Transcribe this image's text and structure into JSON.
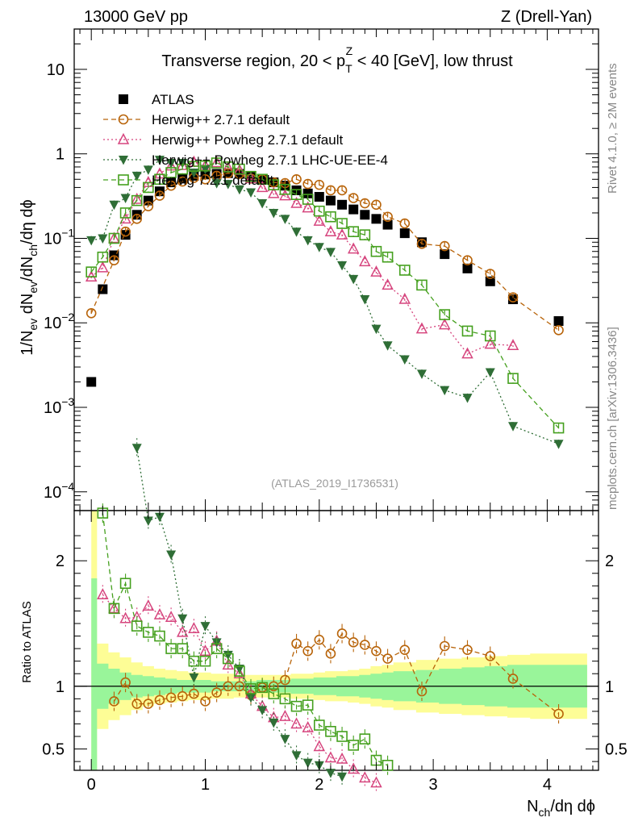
{
  "header": {
    "left": "13000 GeV pp",
    "right": "Z (Drell-Yan)"
  },
  "side": {
    "rivet": "Rivet 4.1.0, ≥ 2M events",
    "mcplots": "mcplots.cern.ch [arXiv:1306.3436]"
  },
  "chart_data": {
    "type": "scatter",
    "title": "Transverse region, 20 < p_T^Z < 40 [GeV], low thrust",
    "analysis_tag": "(ATLAS_2019_I1736531)",
    "xlabel": "N_ch/dη dϕ",
    "ylabel": "1/N_ev dN_ev/dN_ch/dη dϕ",
    "ratio_ylabel": "Ratio to ATLAS",
    "xlim": [
      -0.15,
      4.45
    ],
    "ylim": [
      6e-05,
      30
    ],
    "yscale": "log",
    "ratio_ylim": [
      0.33,
      2.4
    ],
    "x_ticks": [
      0,
      1,
      2,
      3,
      4
    ],
    "y_ticks": [
      {
        "v": 0.0001,
        "base": "10",
        "exp": "−4"
      },
      {
        "v": 0.001,
        "base": "10",
        "exp": "−3"
      },
      {
        "v": 0.01,
        "base": "10",
        "exp": "−2"
      },
      {
        "v": 0.1,
        "base": "10",
        "exp": "−1"
      },
      {
        "v": 1,
        "base": "1",
        "exp": ""
      },
      {
        "v": 10,
        "base": "10",
        "exp": ""
      }
    ],
    "ratio_ticks": [
      {
        "v": 0.5,
        "label": "0.5"
      },
      {
        "v": 1,
        "label": "1"
      },
      {
        "v": 2,
        "label": "2"
      }
    ],
    "x": [
      0.0,
      0.1,
      0.2,
      0.3,
      0.4,
      0.5,
      0.6,
      0.7,
      0.8,
      0.9,
      1.0,
      1.1,
      1.2,
      1.3,
      1.4,
      1.5,
      1.6,
      1.7,
      1.8,
      1.9,
      2.0,
      2.1,
      2.2,
      2.3,
      2.4,
      2.5,
      2.6,
      2.75,
      2.9,
      3.1,
      3.3,
      3.5,
      3.7,
      4.1
    ],
    "series": [
      {
        "name": "ATLAS",
        "marker": "square-filled",
        "color": "#000000",
        "values": [
          0.002,
          0.025,
          0.063,
          0.11,
          0.19,
          0.28,
          0.36,
          0.46,
          0.51,
          0.55,
          0.57,
          0.58,
          0.59,
          0.58,
          0.55,
          0.5,
          0.46,
          0.42,
          0.37,
          0.34,
          0.31,
          0.28,
          0.25,
          0.22,
          0.19,
          0.17,
          0.145,
          0.115,
          0.09,
          0.065,
          0.044,
          0.031,
          0.019,
          0.0105
        ]
      },
      {
        "name": "Herwig++ 2.7.1 default",
        "marker": "circle-open",
        "color": "#b8640a",
        "line": "dashed",
        "values": [
          0.013,
          null,
          0.055,
          0.12,
          0.17,
          0.24,
          0.32,
          0.42,
          0.47,
          0.52,
          0.5,
          0.55,
          0.59,
          0.58,
          0.51,
          0.5,
          0.46,
          0.45,
          0.5,
          0.44,
          0.43,
          0.37,
          0.37,
          0.3,
          0.26,
          0.25,
          0.18,
          0.15,
          0.086,
          0.081,
          0.055,
          0.038,
          0.02,
          0.0082
        ],
        "ratio": [
          null,
          null,
          0.88,
          1.03,
          0.86,
          0.86,
          0.89,
          0.91,
          0.92,
          0.94,
          0.88,
          0.95,
          1.0,
          1.0,
          0.93,
          0.99,
          1.0,
          1.05,
          1.34,
          1.28,
          1.37,
          1.26,
          1.42,
          1.35,
          1.33,
          1.28,
          1.22,
          1.29,
          0.96,
          1.32,
          1.29,
          1.24,
          1.06,
          0.78
        ]
      },
      {
        "name": "Herwig++ Powheg 2.7.1 default",
        "marker": "triangle-open",
        "color": "#d6457e",
        "line": "dotted",
        "values": [
          0.035,
          0.045,
          0.1,
          0.17,
          0.29,
          0.46,
          0.58,
          0.72,
          0.73,
          0.8,
          0.72,
          0.79,
          0.69,
          0.64,
          0.51,
          0.4,
          0.34,
          0.32,
          0.26,
          0.23,
          0.16,
          0.12,
          0.11,
          0.075,
          0.053,
          0.04,
          0.028,
          0.019,
          0.0085,
          0.0095,
          0.0043,
          0.0056,
          0.0054,
          null
        ],
        "ratio": [
          null,
          1.73,
          1.62,
          1.54,
          1.55,
          1.64,
          1.57,
          1.55,
          1.43,
          1.46,
          1.28,
          1.36,
          1.17,
          1.1,
          0.94,
          0.84,
          0.75,
          0.76,
          0.7,
          0.67,
          0.52,
          0.43,
          0.42,
          0.34,
          0.27,
          0.23,
          null,
          null,
          null,
          null,
          null,
          null,
          null,
          null
        ]
      },
      {
        "name": "Herwig++ Powheg 2.7.1 LHC-UE-EE-4",
        "marker": "triangle-down-filled",
        "color": "#2f6e36",
        "line": "dotted",
        "values": [
          0.095,
          0.1,
          0.25,
          0.3,
          0.55,
          0.65,
          0.85,
          0.78,
          0.78,
          0.6,
          0.66,
          0.45,
          0.44,
          0.38,
          0.35,
          0.26,
          0.2,
          0.17,
          0.12,
          0.095,
          0.079,
          0.069,
          0.048,
          0.033,
          0.019,
          0.0085,
          0.0054,
          0.0037,
          0.0025,
          0.0016,
          0.0013,
          0.0026,
          0.0006,
          0.00037
        ],
        "ratio": [
          null,
          null,
          null,
          null,
          2.9,
          2.32,
          2.35,
          2.05,
          1.54,
          1.07,
          1.48,
          1.35,
          1.25,
          1.14,
          0.91,
          0.81,
          0.71,
          0.58,
          0.45,
          0.39,
          0.37,
          0.31,
          0.28,
          null,
          null,
          null,
          null,
          null,
          null,
          null,
          null,
          null,
          null,
          null
        ]
      },
      {
        "name": "Herwig 7.2.1 default",
        "marker": "square-open",
        "color": "#45a01e",
        "line": "dashed",
        "values": [
          0.04,
          0.06,
          0.1,
          0.2,
          0.28,
          0.4,
          0.5,
          0.6,
          0.66,
          0.71,
          0.72,
          0.78,
          0.7,
          0.66,
          0.54,
          0.5,
          0.43,
          0.38,
          0.33,
          0.29,
          0.21,
          0.18,
          0.15,
          0.12,
          0.11,
          0.07,
          0.06,
          0.042,
          0.028,
          0.0125,
          0.008,
          0.007,
          0.0022,
          0.00057
        ],
        "ratio": [
          null,
          2.38,
          1.62,
          1.82,
          1.48,
          1.43,
          1.4,
          1.3,
          1.3,
          1.2,
          1.2,
          1.3,
          1.22,
          1.12,
          0.98,
          0.99,
          0.94,
          0.9,
          0.84,
          0.85,
          0.69,
          0.64,
          0.6,
          0.53,
          0.58,
          0.41,
          0.37,
          null,
          null,
          null,
          null,
          null,
          null,
          null
        ]
      }
    ],
    "uncertainty_bands": {
      "x_edges": [
        0.0,
        0.05,
        0.15,
        0.25,
        0.35,
        0.45,
        0.55,
        0.65,
        0.75,
        0.85,
        0.95,
        1.05,
        1.15,
        1.25,
        1.35,
        1.45,
        1.55,
        1.65,
        1.75,
        1.85,
        1.95,
        2.05,
        2.15,
        2.25,
        2.35,
        2.45,
        2.55,
        2.65,
        2.85,
        3.05,
        3.25,
        3.45,
        3.65,
        3.85,
        4.35
      ],
      "green": [
        1.86,
        1.18,
        1.14,
        1.11,
        1.09,
        1.08,
        1.07,
        1.06,
        1.05,
        1.05,
        1.05,
        1.04,
        1.04,
        1.04,
        1.04,
        1.05,
        1.05,
        1.05,
        1.06,
        1.06,
        1.07,
        1.07,
        1.08,
        1.08,
        1.09,
        1.1,
        1.11,
        1.12,
        1.13,
        1.14,
        1.15,
        1.16,
        1.17,
        1.17
      ],
      "yellow": [
        2.5,
        1.34,
        1.27,
        1.23,
        1.19,
        1.16,
        1.14,
        1.13,
        1.12,
        1.11,
        1.11,
        1.1,
        1.1,
        1.09,
        1.09,
        1.09,
        1.09,
        1.09,
        1.1,
        1.1,
        1.11,
        1.12,
        1.12,
        1.13,
        1.14,
        1.16,
        1.17,
        1.19,
        1.21,
        1.22,
        1.23,
        1.24,
        1.25,
        1.26
      ]
    }
  }
}
